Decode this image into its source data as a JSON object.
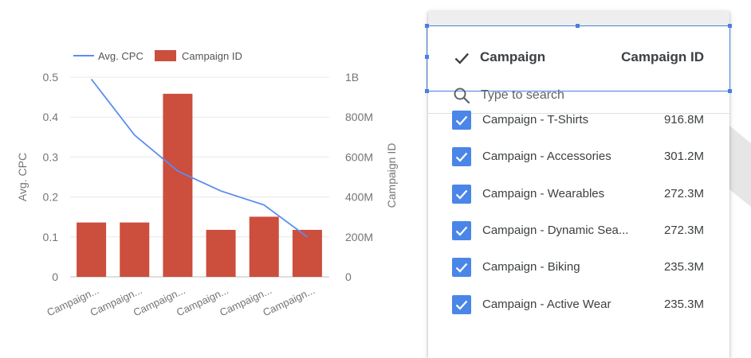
{
  "chart_data": {
    "type": "bar+line",
    "categories": [
      "Campaign...",
      "Campaign...",
      "Campaign...",
      "Campaign...",
      "Campaign...",
      "Campaign..."
    ],
    "series": [
      {
        "name": "Avg. CPC",
        "type": "line",
        "axis": "left",
        "values": [
          0.495,
          0.355,
          0.265,
          0.215,
          0.18,
          0.1
        ]
      },
      {
        "name": "Campaign ID",
        "type": "bar",
        "axis": "right",
        "values": [
          272300000,
          272300000,
          916800000,
          235300000,
          301200000,
          235300000
        ]
      }
    ],
    "left_axis": {
      "label": "Avg. CPC",
      "ticks": [
        "0",
        "0.1",
        "0.2",
        "0.3",
        "0.4",
        "0.5"
      ],
      "range": [
        0,
        0.5
      ]
    },
    "right_axis": {
      "label": "Campaign ID",
      "ticks": [
        "0",
        "200M",
        "400M",
        "600M",
        "800M",
        "1B"
      ],
      "range": [
        0,
        1000000000
      ]
    },
    "legend": {
      "position": "top",
      "items": [
        "Avg. CPC",
        "Campaign ID"
      ]
    },
    "colors": {
      "line": "#5b8def",
      "bar": "#cc4e3d",
      "grid": "#e8e8e8",
      "axis_text": "#757575"
    }
  },
  "panel": {
    "header_label": "Campaign",
    "header_value_label": "Campaign ID",
    "search_placeholder": "Type to search",
    "items": [
      {
        "label": "Campaign - T-Shirts",
        "value": "916.8M"
      },
      {
        "label": "Campaign - Accessories",
        "value": "301.2M"
      },
      {
        "label": "Campaign - Wearables",
        "value": "272.3M"
      },
      {
        "label": "Campaign - Dynamic Sea...",
        "value": "272.3M"
      },
      {
        "label": "Campaign - Biking",
        "value": "235.3M"
      },
      {
        "label": "Campaign - Active Wear",
        "value": "235.3M"
      }
    ],
    "colors": {
      "checkbox": "#4a86e8",
      "selection": "#4a7fe0"
    }
  }
}
